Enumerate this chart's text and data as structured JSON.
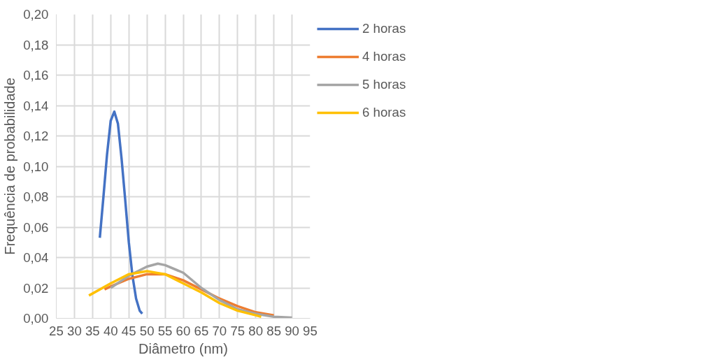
{
  "chart_data": {
    "type": "line",
    "xlabel": "Diâmetro (nm)",
    "ylabel": "Frequência de probabilidade",
    "xlim": [
      25,
      95
    ],
    "xticks": [
      25,
      30,
      35,
      40,
      45,
      50,
      55,
      60,
      65,
      70,
      75,
      80,
      85,
      90,
      95
    ],
    "ylim": [
      0,
      0.2
    ],
    "yticks": [
      {
        "value": 0,
        "label": "0,00"
      },
      {
        "value": 0.02,
        "label": "0,02"
      },
      {
        "value": 0.04,
        "label": "0,04"
      },
      {
        "value": 0.06,
        "label": "0,06"
      },
      {
        "value": 0.08,
        "label": "0,08"
      },
      {
        "value": 0.1,
        "label": "0,10"
      },
      {
        "value": 0.12,
        "label": "0,12"
      },
      {
        "value": 0.14,
        "label": "0,14"
      },
      {
        "value": 0.16,
        "label": "0,16"
      },
      {
        "value": 0.18,
        "label": "0,18"
      },
      {
        "value": 0.2,
        "label": "0,20"
      }
    ],
    "grid": true,
    "legend": "right",
    "marker": "none",
    "line_style": "solid",
    "series": [
      {
        "name": "2 horas",
        "color": "#4472c4",
        "x": [
          37,
          38,
          39,
          40,
          41,
          42,
          43,
          44,
          45,
          46,
          47,
          48,
          48.7
        ],
        "values": [
          0.053,
          0.08,
          0.108,
          0.13,
          0.136,
          0.128,
          0.105,
          0.078,
          0.05,
          0.028,
          0.013,
          0.005,
          0.003
        ]
      },
      {
        "name": "4 horas",
        "color": "#ed7d31",
        "x": [
          38.3,
          40,
          45,
          50,
          55,
          60,
          65,
          70,
          75,
          80,
          85
        ],
        "values": [
          0.019,
          0.021,
          0.026,
          0.029,
          0.029,
          0.025,
          0.019,
          0.013,
          0.008,
          0.004,
          0.002
        ]
      },
      {
        "name": "5 horas",
        "color": "#a5a5a5",
        "x": [
          40,
          45,
          50,
          53,
          55,
          60,
          65,
          70,
          75,
          80,
          85,
          90
        ],
        "values": [
          0.02,
          0.028,
          0.034,
          0.036,
          0.035,
          0.03,
          0.02,
          0.012,
          0.006,
          0.003,
          0.001,
          0.0005
        ]
      },
      {
        "name": "6 horas",
        "color": "#ffc000",
        "x": [
          34,
          40,
          45,
          50,
          55,
          60,
          65,
          70,
          75,
          80,
          81.5
        ],
        "values": [
          0.015,
          0.023,
          0.029,
          0.031,
          0.029,
          0.023,
          0.017,
          0.01,
          0.005,
          0.002,
          0.001
        ]
      }
    ]
  }
}
